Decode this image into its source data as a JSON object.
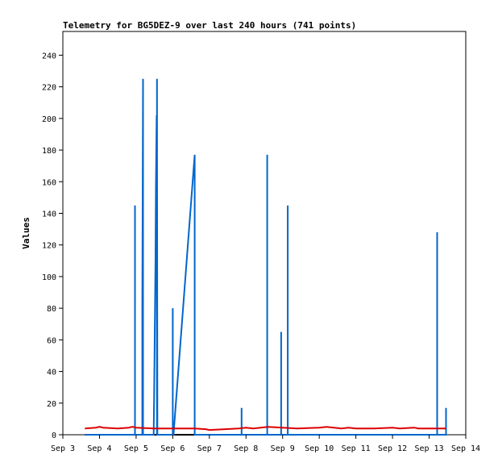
{
  "chart_data": {
    "type": "line",
    "title": "Telemetry for BG5DEZ-9 over last 240 hours (741 points)",
    "ylabel": "Values",
    "xlabel": "",
    "ylim": [
      0,
      255
    ],
    "xlim": [
      3.0,
      14.0
    ],
    "yticks": [
      0,
      20,
      40,
      60,
      80,
      100,
      120,
      140,
      160,
      180,
      200,
      220,
      240
    ],
    "xticks": [
      {
        "pos": 3,
        "label": "Sep 3"
      },
      {
        "pos": 4,
        "label": "Sep 4"
      },
      {
        "pos": 5,
        "label": "Sep 5"
      },
      {
        "pos": 6,
        "label": "Sep 6"
      },
      {
        "pos": 7,
        "label": "Sep 7"
      },
      {
        "pos": 8,
        "label": "Sep 8"
      },
      {
        "pos": 9,
        "label": "Sep 9"
      },
      {
        "pos": 10,
        "label": "Sep 10"
      },
      {
        "pos": 11,
        "label": "Sep 11"
      },
      {
        "pos": 12,
        "label": "Sep 12"
      },
      {
        "pos": 13,
        "label": "Sep 13"
      },
      {
        "pos": 14,
        "label": "Sep 14"
      }
    ],
    "grid": false,
    "series": [
      {
        "color": "#000000",
        "x": [
          3.6,
          13.47
        ],
        "y": [
          0,
          0
        ]
      },
      {
        "color": "#0066cc",
        "x": [
          3.6,
          4.97,
          4.97,
          4.97,
          5.17,
          5.17,
          5.19,
          5.19,
          5.19,
          5.48,
          5.49,
          5.51,
          5.53,
          5.54,
          5.56,
          5.57,
          5.57,
          5.58,
          5.58,
          6.0,
          6.0,
          6.0,
          6.02,
          6.6,
          6.6,
          6.6,
          7.88,
          7.88,
          7.88,
          8.58,
          8.58,
          8.58,
          8.96,
          8.96,
          8.96,
          9.14,
          9.14,
          9.14,
          13.22,
          13.22,
          13.22,
          13.46,
          13.46,
          13.46
        ],
        "y": [
          0,
          0,
          145,
          0,
          0,
          80,
          225,
          0,
          0,
          0,
          22,
          67,
          112,
          157,
          202,
          0,
          225,
          0,
          0,
          0,
          80,
          0,
          0,
          177,
          0,
          0,
          0,
          17,
          0,
          0,
          177,
          0,
          0,
          65,
          0,
          0,
          145,
          0,
          0,
          128,
          0,
          0,
          17,
          0
        ]
      },
      {
        "color": "#dd0000",
        "x": [
          3.6,
          3.9,
          4.0,
          4.1,
          4.5,
          4.8,
          4.9,
          5.0,
          5.5,
          6.0,
          6.6,
          6.9,
          7.0,
          7.8,
          8.0,
          8.2,
          8.4,
          8.6,
          9.0,
          9.4,
          10.0,
          10.2,
          10.4,
          10.6,
          10.8,
          11.0,
          11.5,
          12.0,
          12.2,
          12.6,
          12.7,
          13.0,
          13.46
        ],
        "y": [
          4.0,
          4.5,
          5.0,
          4.5,
          4.0,
          4.5,
          5.0,
          4.5,
          4.0,
          4.0,
          4.0,
          3.5,
          3.0,
          4.0,
          4.5,
          4.0,
          4.5,
          5.0,
          4.5,
          4.0,
          4.5,
          5.0,
          4.5,
          4.0,
          4.5,
          4.0,
          4.0,
          4.5,
          4.0,
          4.5,
          4.0,
          4.0,
          4.0
        ]
      }
    ]
  }
}
